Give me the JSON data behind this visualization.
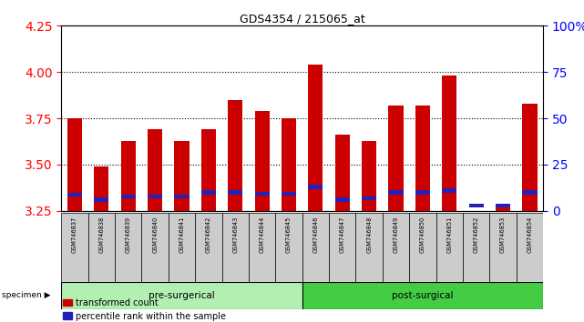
{
  "title": "GDS4354 / 215065_at",
  "samples": [
    "GSM746837",
    "GSM746838",
    "GSM746839",
    "GSM746840",
    "GSM746841",
    "GSM746842",
    "GSM746843",
    "GSM746844",
    "GSM746845",
    "GSM746846",
    "GSM746847",
    "GSM746848",
    "GSM746849",
    "GSM746850",
    "GSM746851",
    "GSM746852",
    "GSM746853",
    "GSM746854"
  ],
  "transformed_count": [
    3.75,
    3.49,
    3.63,
    3.69,
    3.63,
    3.69,
    3.85,
    3.79,
    3.75,
    4.04,
    3.66,
    3.63,
    3.82,
    3.82,
    3.98,
    3.25,
    3.27,
    3.83
  ],
  "percentile_bottom": [
    3.328,
    3.3,
    3.318,
    3.318,
    3.318,
    3.34,
    3.34,
    3.332,
    3.332,
    3.368,
    3.3,
    3.308,
    3.34,
    3.34,
    3.35,
    3.268,
    3.268,
    3.34
  ],
  "percentile_height": [
    0.022,
    0.022,
    0.022,
    0.022,
    0.022,
    0.022,
    0.022,
    0.022,
    0.022,
    0.022,
    0.022,
    0.022,
    0.022,
    0.022,
    0.022,
    0.022,
    0.022,
    0.022
  ],
  "ylim_left": [
    3.25,
    4.25
  ],
  "ylim_right": [
    0,
    100
  ],
  "yticks_left": [
    3.25,
    3.5,
    3.75,
    4.0,
    4.25
  ],
  "yticks_right": [
    0,
    25,
    50,
    75,
    100
  ],
  "pre_surgical_count": 9,
  "bar_color": "#cc0000",
  "blue_color": "#2222bb",
  "pre_color": "#b2f0b2",
  "post_color": "#44cc44",
  "legend_red": "transformed count",
  "legend_blue": "percentile rank within the sample",
  "specimen_label": "specimen",
  "pre_label": "pre-surgerical",
  "post_label": "post-surgical",
  "grid_dotted_at": [
    3.5,
    3.75,
    4.0
  ]
}
